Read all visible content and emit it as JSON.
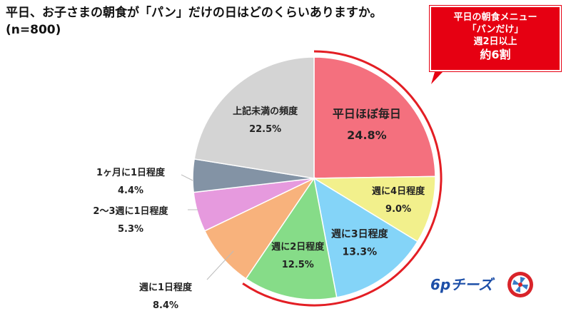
{
  "title": {
    "line1": "平日、お子さまの朝食が「パン」だけの日はどのくらいありますか。",
    "line2": "(n=800)"
  },
  "callout": {
    "line1": "平日の朝食メニュー",
    "line2": "「パンだけ」",
    "line3": "週2日以上",
    "line4": "約6割"
  },
  "logo": {
    "text": "6pチーズ"
  },
  "chart_data": {
    "type": "pie",
    "unit": "%",
    "slices": [
      {
        "label": "平日ほぼ毎日",
        "value": 24.8,
        "display": "24.8%",
        "color": "#f4707e"
      },
      {
        "label": "週に4日程度",
        "value": 9.0,
        "display": "9.0%",
        "color": "#f2f08c"
      },
      {
        "label": "週に3日程度",
        "value": 13.3,
        "display": "13.3%",
        "color": "#84d4f8"
      },
      {
        "label": "週に2日程度",
        "value": 12.5,
        "display": "12.5%",
        "color": "#86dc88"
      },
      {
        "label": "週に1日程度",
        "value": 8.4,
        "display": "8.4%",
        "color": "#f8b27c"
      },
      {
        "label": "2～3週に1日程度",
        "value": 5.3,
        "display": "5.3%",
        "color": "#e69ade"
      },
      {
        "label": "1ヶ月に1日程度",
        "value": 4.4,
        "display": "4.4%",
        "color": "#8393a5"
      },
      {
        "label": "上記未満の頻度",
        "value": 22.5,
        "display": "22.5%",
        "color": "#d4d4d4"
      }
    ],
    "highlight_arc": {
      "from_slice": "平日ほぼ毎日",
      "to_slice": "週に2日程度",
      "color": "#e31e24"
    }
  }
}
